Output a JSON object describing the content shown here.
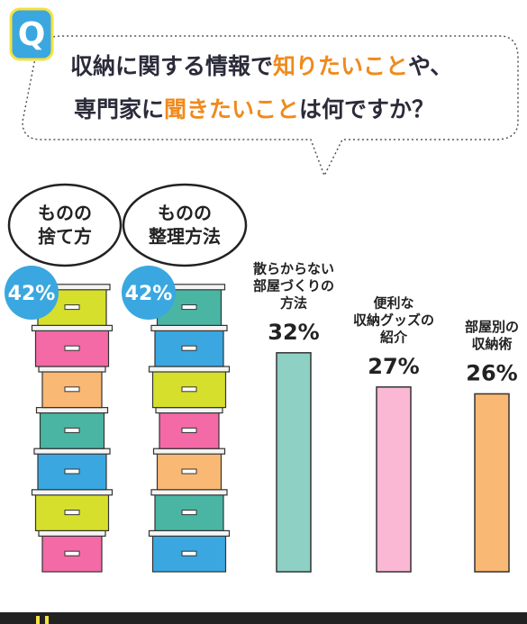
{
  "q_label": "Q",
  "title": {
    "line1": [
      {
        "text": "収納に関する情報で",
        "color": "#2b2b3a"
      },
      {
        "text": "知りたいこと",
        "color": "#f08a1c"
      },
      {
        "text": "や、",
        "color": "#2b2b3a"
      }
    ],
    "line2": [
      {
        "text": "専門家に",
        "color": "#2b2b3a"
      },
      {
        "text": "聞きたいこと",
        "color": "#f08a1c"
      },
      {
        "text": "は何ですか？",
        "color": "#2b2b3a"
      }
    ]
  },
  "chart_data": {
    "type": "bar",
    "categories": [
      [
        "ものの",
        "捨て方"
      ],
      [
        "ものの",
        "整理方法"
      ],
      [
        "散らからない",
        "部屋づくりの",
        "方法"
      ],
      [
        "便利な",
        "収納グッズの",
        "紹介"
      ],
      [
        "部屋別の",
        "収納術"
      ]
    ],
    "values": [
      42,
      42,
      32,
      27,
      26
    ],
    "value_labels": [
      "42%",
      "42%",
      "32%",
      "27%",
      "26%"
    ],
    "colors": [
      null,
      null,
      "#8fd0c4",
      "#fbb8d4",
      "#f9b873"
    ]
  }
}
